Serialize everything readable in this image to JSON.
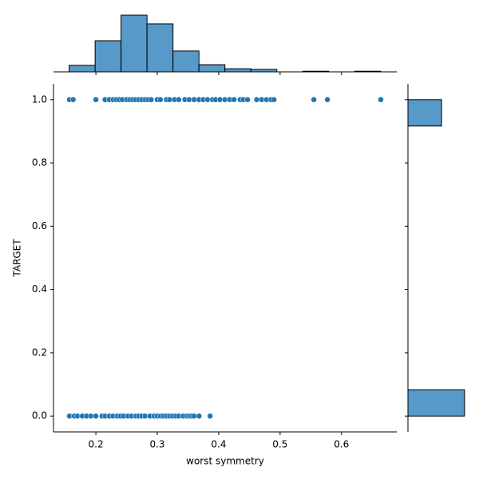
{
  "chart_data": [
    {
      "type": "scatter",
      "xlabel": "worst symmetry",
      "ylabel": "TARGET",
      "color": "#1f77b4",
      "x": [
        0.157,
        0.163,
        0.2,
        0.215,
        0.222,
        0.228,
        0.233,
        0.238,
        0.243,
        0.25,
        0.255,
        0.26,
        0.265,
        0.27,
        0.275,
        0.28,
        0.285,
        0.29,
        0.3,
        0.305,
        0.315,
        0.32,
        0.328,
        0.335,
        0.345,
        0.352,
        0.36,
        0.368,
        0.375,
        0.382,
        0.39,
        0.395,
        0.402,
        0.41,
        0.418,
        0.425,
        0.435,
        0.44,
        0.447,
        0.462,
        0.47,
        0.478,
        0.485,
        0.49,
        0.555,
        0.577,
        0.664,
        0.157,
        0.165,
        0.17,
        0.178,
        0.185,
        0.192,
        0.2,
        0.21,
        0.215,
        0.222,
        0.228,
        0.235,
        0.24,
        0.245,
        0.252,
        0.258,
        0.265,
        0.27,
        0.275,
        0.28,
        0.288,
        0.295,
        0.3,
        0.305,
        0.31,
        0.315,
        0.32,
        0.325,
        0.33,
        0.335,
        0.342,
        0.348,
        0.352,
        0.356,
        0.36,
        0.368,
        0.386
      ],
      "y": [
        1,
        1,
        1,
        1,
        1,
        1,
        1,
        1,
        1,
        1,
        1,
        1,
        1,
        1,
        1,
        1,
        1,
        1,
        1,
        1,
        1,
        1,
        1,
        1,
        1,
        1,
        1,
        1,
        1,
        1,
        1,
        1,
        1,
        1,
        1,
        1,
        1,
        1,
        1,
        1,
        1,
        1,
        1,
        1,
        1,
        1,
        1,
        0,
        0,
        0,
        0,
        0,
        0,
        0,
        0,
        0,
        0,
        0,
        0,
        0,
        0,
        0,
        0,
        0,
        0,
        0,
        0,
        0,
        0,
        0,
        0,
        0,
        0,
        0,
        0,
        0,
        0,
        0,
        0,
        0,
        0,
        0,
        0,
        0
      ],
      "xlim": [
        0.131,
        0.69
      ],
      "xticks": [
        0.2,
        0.3,
        0.4,
        0.5,
        0.6
      ],
      "ylim": [
        -0.05,
        1.05
      ],
      "yticks": [
        {
          "value": 0,
          "label": "0.0"
        },
        0.2,
        0.4,
        0.6,
        0.8,
        {
          "value": 1,
          "label": "1.0"
        }
      ]
    },
    {
      "type": "histogram",
      "orientation": "vertical",
      "color": "#5799c8",
      "bins": [
        0.1565,
        0.1988,
        0.241,
        0.2833,
        0.3256,
        0.3679,
        0.4101,
        0.4524,
        0.4947,
        0.537,
        0.5792,
        0.6215,
        0.6638
      ],
      "counts": [
        21,
        100,
        182,
        154,
        67,
        23,
        10,
        8,
        0,
        2,
        0,
        2
      ],
      "xlim": [
        0.131,
        0.69
      ],
      "ylim": [
        0,
        191
      ]
    },
    {
      "type": "histogram",
      "orientation": "horizontal",
      "color": "#5799c8",
      "bins": [
        0,
        0.0833,
        0.1667,
        0.25,
        0.3333,
        0.4167,
        0.5,
        0.5833,
        0.6667,
        0.75,
        0.8333,
        0.9167,
        1
      ],
      "counts": [
        357,
        0,
        0,
        0,
        0,
        0,
        0,
        0,
        0,
        0,
        0,
        212
      ],
      "xlim": [
        0,
        375
      ],
      "ylim": [
        -0.05,
        1.05
      ]
    }
  ]
}
